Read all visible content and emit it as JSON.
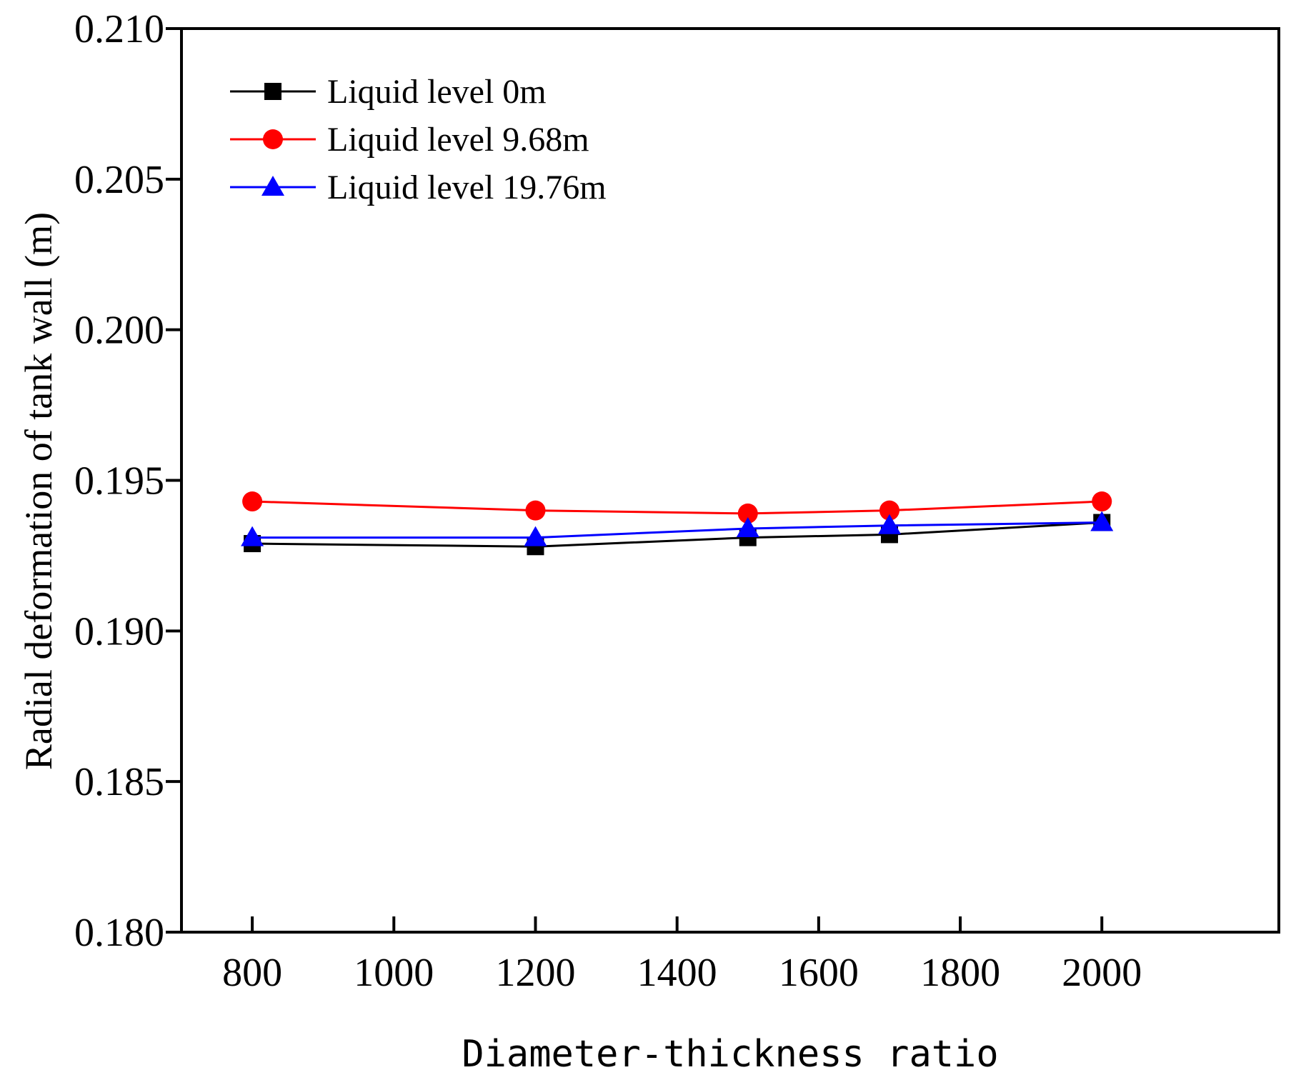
{
  "chart_data": {
    "type": "line",
    "title": "",
    "xlabel": "Diameter-thickness ratio",
    "ylabel": "Radial deformation of tank wall (m)",
    "xlim": [
      700,
      2250
    ],
    "ylim": [
      0.18,
      0.21
    ],
    "x_ticks": [
      800,
      1000,
      1200,
      1400,
      1600,
      1800,
      2000
    ],
    "x_tick_labels": [
      "800",
      "1000",
      "1200",
      "1400",
      "1600",
      "1800",
      "2000"
    ],
    "y_ticks": [
      0.18,
      0.185,
      0.19,
      0.195,
      0.2,
      0.205,
      0.21
    ],
    "y_tick_labels": [
      "0.180",
      "0.185",
      "0.190",
      "0.195",
      "0.200",
      "0.205",
      "0.210"
    ],
    "grid": false,
    "legend_position": "top-left",
    "x": [
      800,
      1200,
      1500,
      1700,
      2000
    ],
    "series": [
      {
        "name": "Liquid level 0m",
        "color": "#000000",
        "marker": "square",
        "values": [
          0.1929,
          0.1928,
          0.1931,
          0.1932,
          0.1936
        ]
      },
      {
        "name": "Liquid level 9.68m",
        "color": "#ff0000",
        "marker": "circle",
        "values": [
          0.1943,
          0.194,
          0.1939,
          0.194,
          0.1943
        ]
      },
      {
        "name": "Liquid level 19.76m",
        "color": "#0000ff",
        "marker": "triangle",
        "values": [
          0.1931,
          0.1931,
          0.1934,
          0.1935,
          0.1936
        ]
      }
    ]
  }
}
